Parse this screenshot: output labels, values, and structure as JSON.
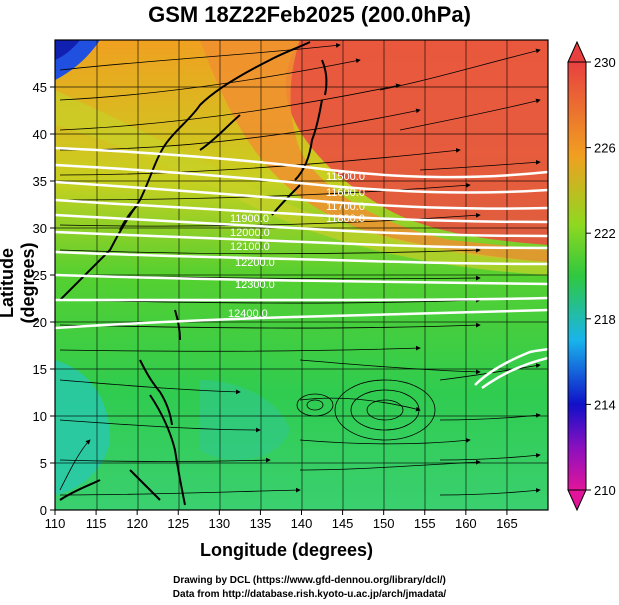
{
  "title": "GSM 18Z22Feb2025 (200.0hPa)",
  "xlabel": "Longitude (degrees)",
  "ylabel": "Latitude  (degrees)",
  "credits": [
    "Drawing by DCL (https://www.gfd-dennou.org/library/dcl/)",
    "Data from http://database.rish.kyoto-u.ac.jp/arch/jmadata/"
  ],
  "chart_data": {
    "type": "heatmap",
    "title": "GSM 18Z22Feb2025 (200.0hPa)",
    "xlabel": "Longitude (degrees)",
    "ylabel": "Latitude  (degrees)",
    "xlim": [
      110,
      170
    ],
    "ylim": [
      0,
      50
    ],
    "x_ticks": [
      110,
      115,
      120,
      125,
      130,
      135,
      140,
      145,
      150,
      155,
      160,
      165
    ],
    "y_ticks": [
      0,
      5,
      10,
      15,
      20,
      25,
      30,
      35,
      40,
      45
    ],
    "colorbar": {
      "min": 210,
      "max": 230,
      "ticks": [
        210,
        214,
        218,
        222,
        226,
        230
      ],
      "colors": [
        "#e2159a",
        "#1010c8",
        "#19b4ec",
        "#2fc840",
        "#8fd820",
        "#f0a020",
        "#e84040"
      ]
    },
    "contour_labels": [
      "11500.0",
      "11600.0",
      "11700.0",
      "11800.0",
      "11900.0",
      "12000.0",
      "12100.0",
      "12200.0",
      "12300.0",
      "12400.0"
    ],
    "grid": true
  }
}
